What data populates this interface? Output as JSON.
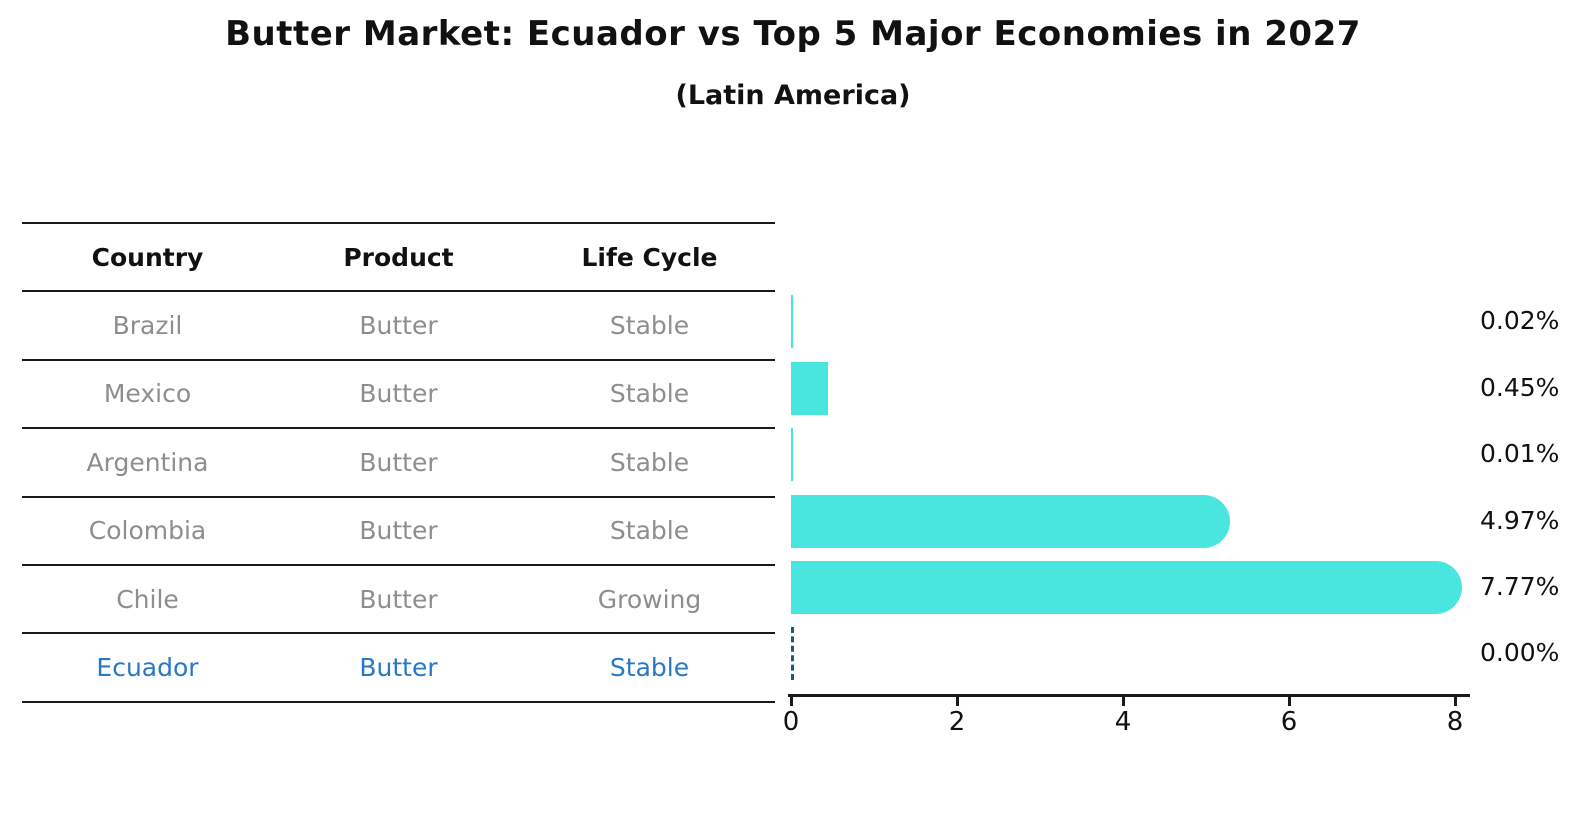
{
  "title": "Butter Market: Ecuador vs Top 5 Major Economies in 2027",
  "subtitle": "(Latin America)",
  "table": {
    "columns": [
      "Country",
      "Product",
      "Life Cycle"
    ],
    "rows": [
      {
        "country": "Brazil",
        "product": "Butter",
        "life_cycle": "Stable",
        "highlight": false
      },
      {
        "country": "Mexico",
        "product": "Butter",
        "life_cycle": "Stable",
        "highlight": false
      },
      {
        "country": "Argentina",
        "product": "Butter",
        "life_cycle": "Stable",
        "highlight": false
      },
      {
        "country": "Colombia",
        "product": "Butter",
        "life_cycle": "Stable",
        "highlight": false
      },
      {
        "country": "Chile",
        "product": "Butter",
        "life_cycle": "Growing",
        "highlight": false
      },
      {
        "country": "Ecuador",
        "product": "Butter",
        "life_cycle": "Stable",
        "highlight": true
      }
    ]
  },
  "chart_data": {
    "type": "bar",
    "orientation": "horizontal",
    "title": "Butter Market: Ecuador vs Top 5 Major Economies in 2027",
    "subtitle": "(Latin America)",
    "categories": [
      "Brazil",
      "Mexico",
      "Argentina",
      "Colombia",
      "Chile",
      "Ecuador"
    ],
    "values": [
      0.02,
      0.45,
      0.01,
      4.97,
      7.77,
      0.0
    ],
    "value_labels": [
      "0.02%",
      "0.45%",
      "0.01%",
      "4.97%",
      "7.77%",
      "0.00%"
    ],
    "xlabel": "",
    "ylabel": "",
    "xlim": [
      0,
      8
    ],
    "x_ticks": [
      "0",
      "2",
      "4",
      "6",
      "8"
    ],
    "grid": false,
    "legend": "none",
    "bar_color": "#49e5df",
    "highlight_index": 5,
    "highlight_style": "dashed-zero-line",
    "highlight_dash_color": "#1c5a82",
    "highlight_text_color": "#2878c8"
  }
}
